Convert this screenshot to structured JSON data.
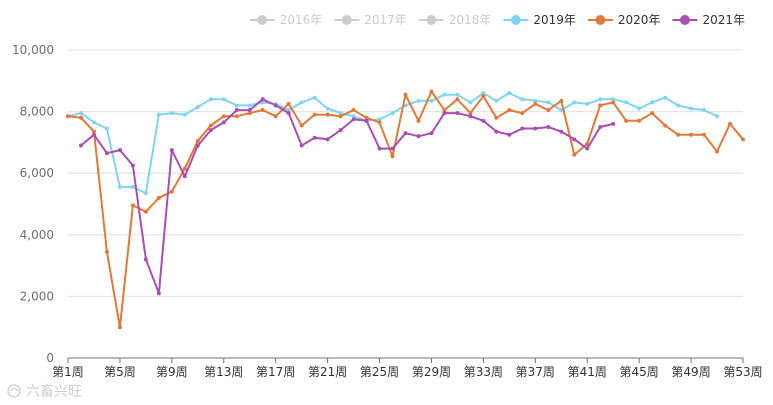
{
  "watermark": {
    "text": "六畜兴旺"
  },
  "chart_data": {
    "type": "line",
    "title": "",
    "xlabel": "",
    "ylabel": "",
    "ylim": [
      0,
      10000
    ],
    "yticks": [
      0,
      2000,
      4000,
      6000,
      8000,
      10000
    ],
    "ytick_labels": [
      "0",
      "2,000",
      "4,000",
      "6,000",
      "8,000",
      "10,000"
    ],
    "x_tick_labels": [
      "第1周",
      "第5周",
      "第9周",
      "第13周",
      "第17周",
      "第21周",
      "第25周",
      "第29周",
      "第33周",
      "第37周",
      "第41周",
      "第45周",
      "第49周",
      "第53周"
    ],
    "x_tick_weeks": [
      1,
      5,
      9,
      13,
      17,
      21,
      25,
      29,
      33,
      37,
      41,
      45,
      49,
      53
    ],
    "x_range": [
      1,
      53
    ],
    "grid": "horizontal",
    "legend_position": "top-right",
    "series": [
      {
        "name": "2016年",
        "color": "#cccccc",
        "hidden": true,
        "values": []
      },
      {
        "name": "2017年",
        "color": "#cccccc",
        "hidden": true,
        "values": []
      },
      {
        "name": "2018年",
        "color": "#cccccc",
        "hidden": true,
        "values": []
      },
      {
        "name": "2019年",
        "color": "#80d4f0",
        "hidden": false,
        "values": [
          7850,
          7950,
          7650,
          7450,
          5550,
          5550,
          5350,
          7900,
          7950,
          7900,
          8150,
          8400,
          8400,
          8200,
          8200,
          8300,
          8250,
          8050,
          8300,
          8450,
          8100,
          7950,
          7850,
          7700,
          7750,
          7950,
          8200,
          8350,
          8350,
          8550,
          8550,
          8300,
          8600,
          8350,
          8600,
          8400,
          8350,
          8300,
          8050,
          8300,
          8250,
          8400,
          8400,
          8300,
          8100,
          8300,
          8450,
          8200,
          8100,
          8050,
          7850
        ]
      },
      {
        "name": "2020年",
        "color": "#e07a3a",
        "hidden": false,
        "values": [
          7850,
          7800,
          7350,
          3450,
          1000,
          4950,
          4750,
          5200,
          5400,
          6150,
          7050,
          7550,
          7850,
          7850,
          7950,
          8050,
          7850,
          8250,
          7550,
          7900,
          7900,
          7850,
          8050,
          7800,
          7650,
          6550,
          8550,
          7700,
          8650,
          8050,
          8400,
          7950,
          8500,
          7800,
          8050,
          7950,
          8250,
          8050,
          8350,
          6600,
          6950,
          8200,
          8300,
          7700,
          7700,
          7950,
          7550,
          7250,
          7250,
          7250,
          6700,
          7600,
          7100
        ]
      },
      {
        "name": "2021年",
        "color": "#a84fb0",
        "hidden": false,
        "values": [
          null,
          6900,
          7250,
          6650,
          6750,
          6250,
          3200,
          2100,
          6750,
          5900,
          6900,
          7400,
          7650,
          8050,
          8050,
          8400,
          8200,
          7950,
          6900,
          7150,
          7100,
          7400,
          7750,
          7700,
          6800,
          6800,
          7300,
          7200,
          7300,
          7950,
          7950,
          7850,
          7700,
          7350,
          7250,
          7450,
          7450,
          7500,
          7350,
          7100,
          6800,
          7500,
          7600
        ]
      }
    ]
  }
}
